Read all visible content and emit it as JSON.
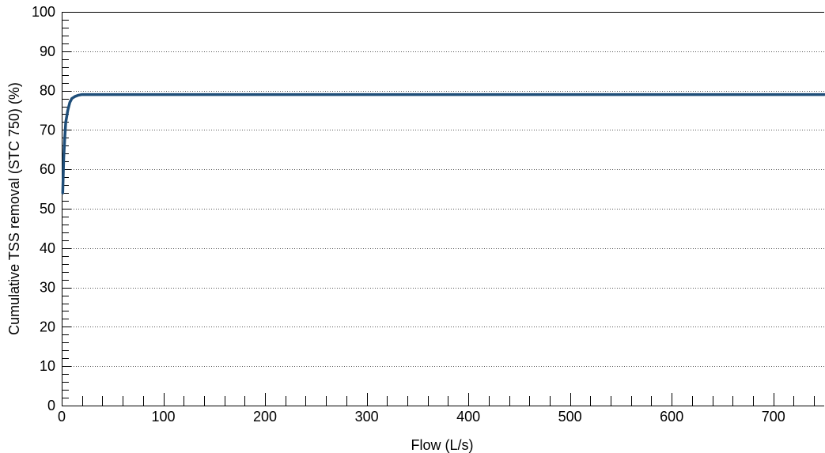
{
  "chart_data": {
    "type": "line",
    "title": "",
    "xlabel": "Flow (L/s)",
    "ylabel": "Cumulative TSS removal (STC 750) (%)",
    "xlim": [
      0,
      750
    ],
    "ylim": [
      0,
      100
    ],
    "x_ticks": [
      0,
      100,
      200,
      300,
      400,
      500,
      600,
      700
    ],
    "x_minor_step": 20,
    "y_ticks": [
      0,
      10,
      20,
      30,
      40,
      50,
      60,
      70,
      80,
      90,
      100
    ],
    "y_minor_step": 2,
    "grid": "horizontal-dotted",
    "legend": "none",
    "series": [
      {
        "color": "#1f4e79",
        "x": [
          1,
          2,
          3,
          4,
          6,
          8,
          10,
          13,
          16,
          20,
          30,
          50,
          100,
          200,
          300,
          400,
          500,
          600,
          700,
          750
        ],
        "y": [
          54,
          63,
          68,
          72,
          75,
          77,
          78,
          78.5,
          78.8,
          79,
          79,
          79,
          79,
          79,
          79,
          79,
          79,
          79,
          79,
          79
        ]
      }
    ]
  }
}
